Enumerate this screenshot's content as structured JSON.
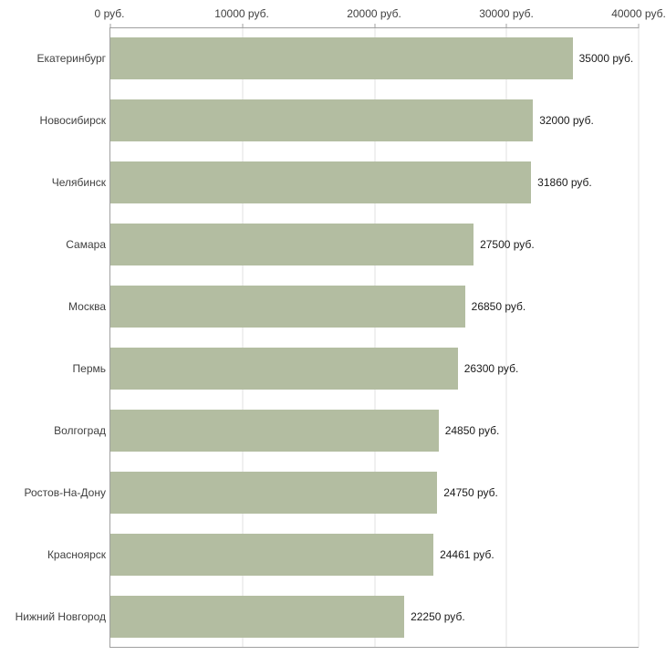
{
  "chart_data": {
    "type": "bar",
    "orientation": "horizontal",
    "title": "",
    "xlabel": "",
    "ylabel": "",
    "xlim": [
      0,
      40000
    ],
    "grid": true,
    "bar_color": "#b3bda1",
    "categories": [
      "Екатеринбург",
      "Новосибирск",
      "Челябинск",
      "Самара",
      "Москва",
      "Пермь",
      "Волгоград",
      "Ростов-На-Дону",
      "Красноярск",
      "Нижний Новгород"
    ],
    "values": [
      35000,
      32000,
      31860,
      27500,
      26850,
      26300,
      24850,
      24750,
      24461,
      22250
    ],
    "value_labels": [
      "35000 руб.",
      "32000 руб.",
      "31860 руб.",
      "27500 руб.",
      "26850 руб.",
      "26300 руб.",
      "24850 руб.",
      "24750 руб.",
      "24461 руб.",
      "22250 руб."
    ],
    "x_ticks": [
      "0 руб.",
      "10000 руб.",
      "20000 руб.",
      "30000 руб.",
      "40000 руб."
    ],
    "x_tick_values": [
      0,
      10000,
      20000,
      30000,
      40000
    ]
  }
}
